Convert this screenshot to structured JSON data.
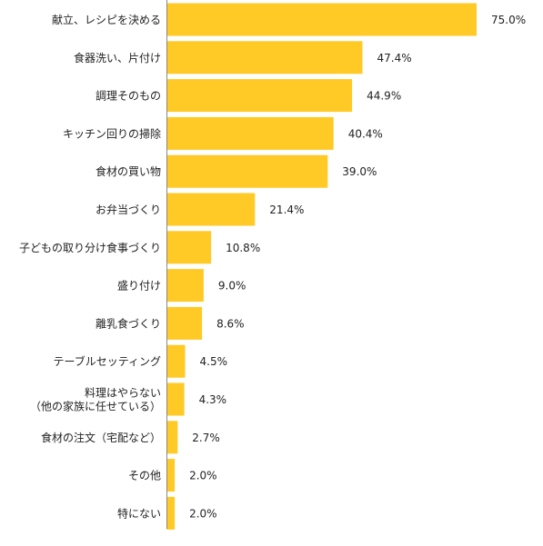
{
  "chart_data": {
    "type": "bar",
    "orientation": "horizontal",
    "categories": [
      "献立、レシピを決める",
      "食器洗い、片付け",
      "調理そのもの",
      "キッチン回りの掃除",
      "食材の買い物",
      "お弁当づくり",
      "子どもの取り分け食事づくり",
      "盛り付け",
      "離乳食づくり",
      "テーブルセッティング",
      "料理はやらない\n（他の家族に任せている）",
      "食材の注文（宅配など）",
      "その他",
      "特にない"
    ],
    "values": [
      75.0,
      47.4,
      44.9,
      40.4,
      39.0,
      21.4,
      10.8,
      9.0,
      8.6,
      4.5,
      4.3,
      2.7,
      2.0,
      2.0
    ],
    "value_labels": [
      "75.0%",
      "47.4%",
      "44.9%",
      "40.4%",
      "39.0%",
      "21.4%",
      "10.8%",
      "9.0%",
      "8.6%",
      "4.5%",
      "4.3%",
      "2.7%",
      "2.0%",
      "2.0%"
    ],
    "xlim": [
      0,
      100
    ],
    "grid": false,
    "bar_color": "#FFC926",
    "axis_color": "#888888"
  }
}
